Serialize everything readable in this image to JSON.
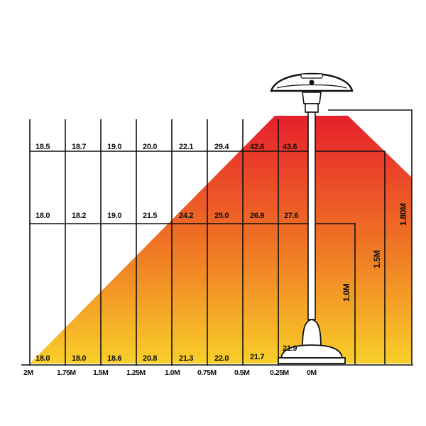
{
  "colors": {
    "gradient_top": "#e6202c",
    "gradient_mid": "#f07a24",
    "gradient_bottom": "#f8cf2a",
    "line": "#111111",
    "heater_body": "#ffffff"
  },
  "distance_axis": [
    "2M",
    "1.75M",
    "1.5M",
    "1.25M",
    "1.0M",
    "0.75M",
    "0.5M",
    "0.25M",
    "0M"
  ],
  "temperature_rows": [
    {
      "height": "1.80M",
      "values": [
        "18.5",
        "18.7",
        "19.0",
        "20.0",
        "22.1",
        "29.4",
        "42.6",
        "43.6"
      ]
    },
    {
      "height": "1.5M",
      "values": [
        "18.0",
        "18.2",
        "19.0",
        "21.5",
        "24.2",
        "25.0",
        "26.9",
        "27.6"
      ]
    },
    {
      "height": "1.0M",
      "values": [
        "18.0",
        "18.0",
        "18.6",
        "20.8",
        "21.3",
        "22.0",
        "21.7",
        "21.9"
      ]
    }
  ],
  "height_labels": [
    "1.0M",
    "1.5M",
    "1.80M"
  ],
  "icons": {
    "heater": "patio-heater-icon"
  }
}
